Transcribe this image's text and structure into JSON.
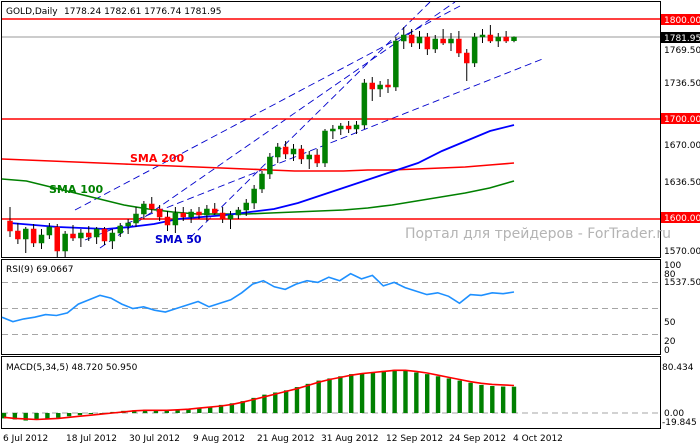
{
  "header": {
    "symbol_label": "GOLD,Daily",
    "ohlc_label": "1778.24 1782.61 1776.74 1781.95"
  },
  "watermark": "Портал для трейдеров - ForTrader.ru",
  "colors": {
    "bull": "#008000",
    "bear": "#ff0000",
    "level": "#ff0000",
    "sma200": "#ff0000",
    "sma100": "#008000",
    "sma50": "#0000ff",
    "channel": "#0000cc",
    "rsi": "#1e90ff",
    "macd_hist": "#008000",
    "macd_signal": "#ff0000",
    "grid": "#888888"
  },
  "price_axis": {
    "ticks": [
      "1769.50",
      "1736.50",
      "1703.25",
      "1670.00",
      "1636.50",
      "1603.25",
      "1570.00",
      "1537.50"
    ],
    "current_price": "1781.95",
    "level_labels": [
      "1800.00",
      "1700.00",
      "1600.00"
    ]
  },
  "indicators": {
    "sma200_label": "SMA 200",
    "sma100_label": "SMA 100",
    "sma50_label": "SMA 50"
  },
  "rsi_panel": {
    "title": "RSI(9) 69.0667",
    "ticks": [
      "100",
      "80",
      "50",
      "20",
      "0"
    ]
  },
  "macd_panel": {
    "title": "MACD(5,34,5) 48.720 50.950",
    "ticks": [
      "80.434",
      "0.00",
      "-19.845"
    ]
  },
  "time_axis": {
    "labels": [
      "6 Jul 2012",
      "18 Jul 2012",
      "30 Jul 2012",
      "9 Aug 2012",
      "21 Aug 2012",
      "31 Aug 2012",
      "12 Sep 2012",
      "24 Sep 2012",
      "4 Oct 2012"
    ]
  },
  "chart_data": {
    "type": "candlestick",
    "symbol": "GOLD",
    "timeframe": "Daily",
    "ohlc_last": {
      "open": 1778.24,
      "high": 1782.61,
      "low": 1776.74,
      "close": 1781.95
    },
    "horizontal_levels": [
      1800.0,
      1700.0,
      1600.0
    ],
    "candles": [
      {
        "o": 1598,
        "h": 1612,
        "l": 1582,
        "c": 1588
      },
      {
        "o": 1588,
        "h": 1596,
        "l": 1575,
        "c": 1580
      },
      {
        "o": 1580,
        "h": 1592,
        "l": 1566,
        "c": 1590
      },
      {
        "o": 1590,
        "h": 1595,
        "l": 1572,
        "c": 1576
      },
      {
        "o": 1576,
        "h": 1590,
        "l": 1570,
        "c": 1584
      },
      {
        "o": 1584,
        "h": 1596,
        "l": 1580,
        "c": 1592
      },
      {
        "o": 1592,
        "h": 1595,
        "l": 1562,
        "c": 1568
      },
      {
        "o": 1568,
        "h": 1588,
        "l": 1562,
        "c": 1585
      },
      {
        "o": 1585,
        "h": 1594,
        "l": 1578,
        "c": 1581
      },
      {
        "o": 1581,
        "h": 1590,
        "l": 1572,
        "c": 1586
      },
      {
        "o": 1586,
        "h": 1593,
        "l": 1578,
        "c": 1582
      },
      {
        "o": 1582,
        "h": 1592,
        "l": 1575,
        "c": 1590
      },
      {
        "o": 1590,
        "h": 1592,
        "l": 1574,
        "c": 1578
      },
      {
        "o": 1578,
        "h": 1590,
        "l": 1570,
        "c": 1586
      },
      {
        "o": 1586,
        "h": 1596,
        "l": 1582,
        "c": 1593
      },
      {
        "o": 1593,
        "h": 1600,
        "l": 1585,
        "c": 1596
      },
      {
        "o": 1596,
        "h": 1612,
        "l": 1592,
        "c": 1605
      },
      {
        "o": 1605,
        "h": 1618,
        "l": 1600,
        "c": 1615
      },
      {
        "o": 1615,
        "h": 1622,
        "l": 1606,
        "c": 1610
      },
      {
        "o": 1610,
        "h": 1614,
        "l": 1598,
        "c": 1602
      },
      {
        "o": 1602,
        "h": 1608,
        "l": 1588,
        "c": 1594
      },
      {
        "o": 1594,
        "h": 1612,
        "l": 1586,
        "c": 1606
      },
      {
        "o": 1606,
        "h": 1612,
        "l": 1598,
        "c": 1602
      },
      {
        "o": 1602,
        "h": 1610,
        "l": 1596,
        "c": 1607
      },
      {
        "o": 1607,
        "h": 1612,
        "l": 1600,
        "c": 1604
      },
      {
        "o": 1604,
        "h": 1614,
        "l": 1598,
        "c": 1610
      },
      {
        "o": 1610,
        "h": 1616,
        "l": 1604,
        "c": 1606
      },
      {
        "o": 1606,
        "h": 1612,
        "l": 1596,
        "c": 1600
      },
      {
        "o": 1600,
        "h": 1608,
        "l": 1590,
        "c": 1604
      },
      {
        "o": 1604,
        "h": 1612,
        "l": 1600,
        "c": 1609
      },
      {
        "o": 1609,
        "h": 1620,
        "l": 1603,
        "c": 1616
      },
      {
        "o": 1616,
        "h": 1634,
        "l": 1610,
        "c": 1630
      },
      {
        "o": 1630,
        "h": 1648,
        "l": 1626,
        "c": 1645
      },
      {
        "o": 1645,
        "h": 1666,
        "l": 1640,
        "c": 1662
      },
      {
        "o": 1662,
        "h": 1676,
        "l": 1656,
        "c": 1672
      },
      {
        "o": 1672,
        "h": 1678,
        "l": 1660,
        "c": 1665
      },
      {
        "o": 1665,
        "h": 1675,
        "l": 1658,
        "c": 1670
      },
      {
        "o": 1670,
        "h": 1674,
        "l": 1655,
        "c": 1660
      },
      {
        "o": 1660,
        "h": 1668,
        "l": 1650,
        "c": 1664
      },
      {
        "o": 1664,
        "h": 1670,
        "l": 1652,
        "c": 1656
      },
      {
        "o": 1656,
        "h": 1690,
        "l": 1652,
        "c": 1688
      },
      {
        "o": 1688,
        "h": 1694,
        "l": 1680,
        "c": 1690
      },
      {
        "o": 1690,
        "h": 1696,
        "l": 1684,
        "c": 1693
      },
      {
        "o": 1693,
        "h": 1698,
        "l": 1686,
        "c": 1690
      },
      {
        "o": 1690,
        "h": 1698,
        "l": 1685,
        "c": 1694
      },
      {
        "o": 1694,
        "h": 1740,
        "l": 1690,
        "c": 1736
      },
      {
        "o": 1736,
        "h": 1742,
        "l": 1718,
        "c": 1730
      },
      {
        "o": 1730,
        "h": 1738,
        "l": 1722,
        "c": 1734
      },
      {
        "o": 1734,
        "h": 1740,
        "l": 1726,
        "c": 1732
      },
      {
        "o": 1732,
        "h": 1782,
        "l": 1728,
        "c": 1778
      },
      {
        "o": 1778,
        "h": 1792,
        "l": 1770,
        "c": 1784
      },
      {
        "o": 1784,
        "h": 1790,
        "l": 1772,
        "c": 1776
      },
      {
        "o": 1776,
        "h": 1788,
        "l": 1770,
        "c": 1782
      },
      {
        "o": 1782,
        "h": 1786,
        "l": 1764,
        "c": 1770
      },
      {
        "o": 1770,
        "h": 1784,
        "l": 1766,
        "c": 1780
      },
      {
        "o": 1780,
        "h": 1790,
        "l": 1774,
        "c": 1776
      },
      {
        "o": 1776,
        "h": 1786,
        "l": 1768,
        "c": 1780
      },
      {
        "o": 1780,
        "h": 1788,
        "l": 1762,
        "c": 1766
      },
      {
        "o": 1766,
        "h": 1770,
        "l": 1738,
        "c": 1756
      },
      {
        "o": 1756,
        "h": 1786,
        "l": 1752,
        "c": 1782
      },
      {
        "o": 1782,
        "h": 1790,
        "l": 1776,
        "c": 1784
      },
      {
        "o": 1784,
        "h": 1794,
        "l": 1776,
        "c": 1778
      },
      {
        "o": 1778,
        "h": 1786,
        "l": 1772,
        "c": 1782
      },
      {
        "o": 1782,
        "h": 1788,
        "l": 1776,
        "c": 1778
      },
      {
        "o": 1778.24,
        "h": 1782.61,
        "l": 1776.74,
        "c": 1781.95
      }
    ],
    "sma200": [
      1660,
      1659,
      1658,
      1657,
      1656,
      1655,
      1654,
      1653,
      1652,
      1651,
      1650,
      1649,
      1648,
      1648,
      1648,
      1649,
      1649,
      1650,
      1651,
      1652,
      1654,
      1656
    ],
    "sma100": [
      1640,
      1638,
      1632,
      1626,
      1620,
      1614,
      1610,
      1607,
      1605,
      1605,
      1605,
      1606,
      1607,
      1608,
      1609,
      1611,
      1614,
      1618,
      1622,
      1626,
      1631,
      1638
    ],
    "sma50": [
      1596,
      1594,
      1592,
      1591,
      1590,
      1592,
      1595,
      1600,
      1602,
      1604,
      1607,
      1610,
      1616,
      1624,
      1632,
      1640,
      1648,
      1656,
      1668,
      1678,
      1688,
      1694
    ],
    "rsi": [
      40,
      35,
      38,
      40,
      43,
      42,
      45,
      55,
      60,
      65,
      62,
      55,
      50,
      52,
      48,
      46,
      50,
      54,
      58,
      52,
      56,
      60,
      68,
      78,
      82,
      75,
      72,
      78,
      82,
      80,
      86,
      82,
      90,
      84,
      88,
      76,
      80,
      74,
      70,
      66,
      68,
      64,
      56,
      66,
      65,
      68,
      67,
      69
    ],
    "macd": [
      -10,
      -12,
      -14,
      -13,
      -11,
      -9,
      -6,
      -4,
      -2,
      -1,
      2,
      4,
      5,
      6,
      5,
      4,
      6,
      8,
      10,
      12,
      15,
      18,
      22,
      28,
      34,
      38,
      42,
      48,
      54,
      60,
      64,
      68,
      72,
      74,
      76,
      78,
      80,
      78,
      75,
      72,
      68,
      64,
      60,
      56,
      52,
      50,
      49,
      48.72
    ],
    "macd_signal": [
      -8,
      -10,
      -11,
      -12,
      -11,
      -10,
      -8,
      -6,
      -4,
      -2,
      0,
      2,
      4,
      5,
      5,
      5,
      6,
      7,
      9,
      11,
      13,
      16,
      20,
      25,
      30,
      35,
      40,
      45,
      51,
      57,
      62,
      66,
      70,
      73,
      75,
      77,
      79,
      79,
      77,
      74,
      70,
      66,
      62,
      58,
      55,
      53,
      52,
      50.95
    ]
  }
}
